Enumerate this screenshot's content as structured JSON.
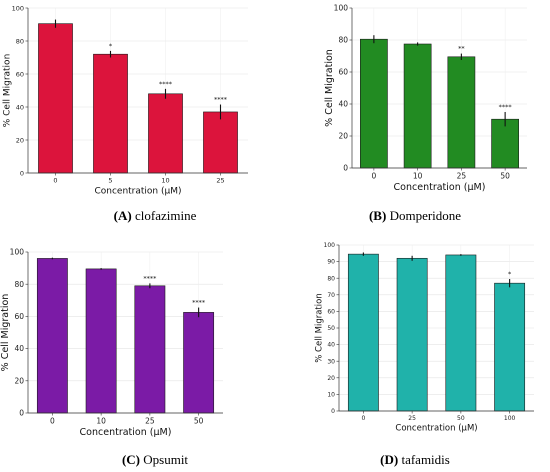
{
  "chart_data": [
    {
      "type": "bar",
      "panel_label": "A",
      "caption": "clofazimine",
      "categories": [
        "0",
        "5",
        "10",
        "25"
      ],
      "values": [
        90.5,
        72,
        48,
        37
      ],
      "errors": [
        2.5,
        2,
        3,
        4.5
      ],
      "significance": [
        "",
        "*",
        "****",
        "****"
      ],
      "color": "#dc143c",
      "xlabel": "Concentration (μM)",
      "ylabel": "% Cell Migration",
      "ylim": [
        0,
        100
      ],
      "yticks": [
        0,
        20,
        40,
        60,
        80,
        100
      ],
      "grid": true
    },
    {
      "type": "bar",
      "panel_label": "B",
      "caption": "Domperidone",
      "categories": [
        "0",
        "10",
        "25",
        "50"
      ],
      "values": [
        80.5,
        77.5,
        69.5,
        30.5
      ],
      "errors": [
        2.5,
        1,
        2,
        4.5
      ],
      "significance": [
        "",
        "",
        "**",
        "****"
      ],
      "color": "#228b22",
      "xlabel": "Concentration (μM)",
      "ylabel": "% Cell Migration",
      "ylim": [
        0,
        100
      ],
      "yticks": [
        0,
        20,
        40,
        60,
        80,
        100
      ],
      "grid": true
    },
    {
      "type": "bar",
      "panel_label": "C",
      "caption": "Opsumit",
      "categories": [
        "0",
        "10",
        "25",
        "50"
      ],
      "values": [
        96,
        89.5,
        79,
        62.5
      ],
      "errors": [
        0.5,
        0.5,
        1.5,
        3
      ],
      "significance": [
        "",
        "",
        "****",
        "****"
      ],
      "color": "#7b1ba6",
      "xlabel": "Concentration (μM)",
      "ylabel": "% Cell Migration",
      "ylim": [
        0,
        100
      ],
      "yticks": [
        0,
        20,
        40,
        60,
        80,
        100
      ],
      "grid": true
    },
    {
      "type": "bar",
      "panel_label": "D",
      "caption": "tafamidis",
      "categories": [
        "0",
        "25",
        "50",
        "100"
      ],
      "values": [
        94.5,
        92,
        94,
        77
      ],
      "errors": [
        1,
        1.5,
        0.5,
        2.5
      ],
      "significance": [
        "",
        "",
        "",
        "*"
      ],
      "color": "#20b2aa",
      "xlabel": "Concentration (μM)",
      "ylabel": "% Cell Migration",
      "ylim": [
        0,
        100
      ],
      "yticks": [
        0,
        10,
        20,
        30,
        40,
        50,
        60,
        70,
        80,
        90,
        100
      ],
      "grid": true
    }
  ]
}
